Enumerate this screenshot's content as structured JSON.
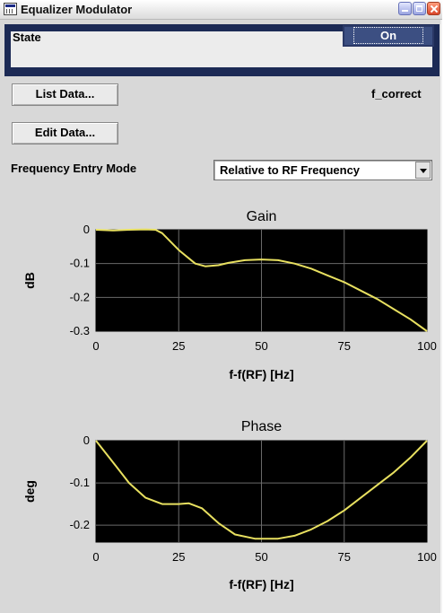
{
  "window": {
    "title": "Equalizer Modulator"
  },
  "state": {
    "label": "State",
    "value": "On"
  },
  "buttons": {
    "list_data": "List Data...",
    "edit_data": "Edit Data..."
  },
  "list_name": "f_correct",
  "frequency_entry": {
    "label": "Frequency Entry Mode",
    "selected": "Relative to RF Frequency"
  },
  "colors": {
    "plot_bg": "#000000",
    "curve": "#e8e060",
    "grid": "#6a6a6a",
    "state_button": "#3c4f82"
  },
  "icons": [
    "app-icon",
    "minimize-icon",
    "maximize-icon",
    "close-icon",
    "chevron-down-icon"
  ],
  "chart_data": [
    {
      "type": "line",
      "title": "Gain",
      "xlabel": "f-f(RF) [Hz]",
      "ylabel": "dB",
      "xlim": [
        0,
        100
      ],
      "ylim": [
        -0.3,
        0
      ],
      "xticks": [
        "0",
        "25",
        "50",
        "75",
        "100"
      ],
      "yticks": [
        "0",
        "-0.1",
        "-0.2",
        "-0.3"
      ],
      "grid": true,
      "series": [
        {
          "x": [
            0,
            5,
            10,
            15,
            18,
            20,
            25,
            30,
            33,
            37,
            40,
            45,
            50,
            55,
            60,
            65,
            70,
            75,
            80,
            85,
            90,
            95,
            100
          ],
          "values": [
            0,
            -0.002,
            0,
            0.001,
            0,
            -0.01,
            -0.06,
            -0.1,
            -0.108,
            -0.105,
            -0.098,
            -0.09,
            -0.088,
            -0.09,
            -0.1,
            -0.115,
            -0.135,
            -0.155,
            -0.18,
            -0.205,
            -0.235,
            -0.265,
            -0.3
          ]
        }
      ]
    },
    {
      "type": "line",
      "title": "Phase",
      "xlabel": "f-f(RF) [Hz]",
      "ylabel": "deg",
      "xlim": [
        0,
        100
      ],
      "ylim": [
        -0.24,
        0
      ],
      "xticks": [
        "0",
        "25",
        "50",
        "75",
        "100"
      ],
      "yticks": [
        "0",
        "-0.1",
        "-0.2"
      ],
      "grid": true,
      "series": [
        {
          "x": [
            0,
            5,
            10,
            15,
            20,
            25,
            28,
            32,
            37,
            42,
            48,
            55,
            60,
            65,
            70,
            75,
            80,
            85,
            90,
            95,
            100
          ],
          "values": [
            0,
            -0.05,
            -0.1,
            -0.135,
            -0.15,
            -0.15,
            -0.148,
            -0.16,
            -0.195,
            -0.222,
            -0.232,
            -0.232,
            -0.225,
            -0.21,
            -0.19,
            -0.165,
            -0.135,
            -0.105,
            -0.075,
            -0.04,
            0
          ]
        }
      ]
    }
  ]
}
